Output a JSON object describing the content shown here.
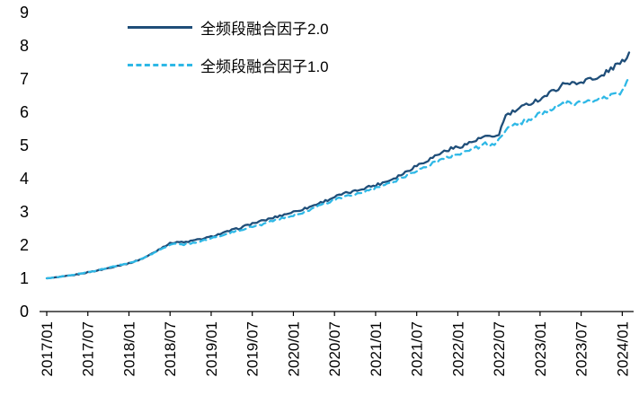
{
  "chart_data": {
    "type": "line",
    "title": "",
    "xlabel": "",
    "ylabel": "",
    "ylim": [
      0,
      9
    ],
    "y_ticks": [
      0,
      1,
      2,
      3,
      4,
      5,
      6,
      7,
      8,
      9
    ],
    "grid": false,
    "legend_position": "top-left-inside",
    "axis_color": "#000000",
    "x_tick_labels": [
      "2017/01",
      "2017/07",
      "2018/01",
      "2018/07",
      "2019/01",
      "2019/07",
      "2020/01",
      "2020/07",
      "2021/01",
      "2021/07",
      "2022/01",
      "2022/07",
      "2023/01",
      "2023/07",
      "2024/01"
    ],
    "x": [
      "2017/01",
      "2017/02",
      "2017/03",
      "2017/04",
      "2017/05",
      "2017/06",
      "2017/07",
      "2017/08",
      "2017/09",
      "2017/10",
      "2017/11",
      "2017/12",
      "2018/01",
      "2018/02",
      "2018/03",
      "2018/04",
      "2018/05",
      "2018/06",
      "2018/07",
      "2018/08",
      "2018/09",
      "2018/10",
      "2018/11",
      "2018/12",
      "2019/01",
      "2019/02",
      "2019/03",
      "2019/04",
      "2019/05",
      "2019/06",
      "2019/07",
      "2019/08",
      "2019/09",
      "2019/10",
      "2019/11",
      "2019/12",
      "2020/01",
      "2020/02",
      "2020/03",
      "2020/04",
      "2020/05",
      "2020/06",
      "2020/07",
      "2020/08",
      "2020/09",
      "2020/10",
      "2020/11",
      "2020/12",
      "2021/01",
      "2021/02",
      "2021/03",
      "2021/04",
      "2021/05",
      "2021/06",
      "2021/07",
      "2021/08",
      "2021/09",
      "2021/10",
      "2021/11",
      "2021/12",
      "2022/01",
      "2022/02",
      "2022/03",
      "2022/04",
      "2022/05",
      "2022/06",
      "2022/07",
      "2022/08",
      "2022/09",
      "2022/10",
      "2022/11",
      "2022/12",
      "2023/01",
      "2023/02",
      "2023/03",
      "2023/04",
      "2023/05",
      "2023/06",
      "2023/07",
      "2023/08",
      "2023/09",
      "2023/10",
      "2023/11",
      "2023/12",
      "2024/01",
      "2024/02"
    ],
    "series": [
      {
        "name": "全频段融合因子2.0",
        "color": "#1f4e79",
        "style": "solid",
        "values": [
          1.0,
          1.02,
          1.04,
          1.07,
          1.1,
          1.14,
          1.18,
          1.22,
          1.26,
          1.31,
          1.36,
          1.41,
          1.45,
          1.52,
          1.6,
          1.7,
          1.82,
          1.95,
          2.05,
          2.1,
          2.08,
          2.12,
          2.16,
          2.2,
          2.25,
          2.32,
          2.38,
          2.45,
          2.5,
          2.58,
          2.65,
          2.7,
          2.76,
          2.82,
          2.88,
          2.94,
          3.0,
          3.06,
          3.12,
          3.2,
          3.28,
          3.36,
          3.45,
          3.52,
          3.58,
          3.62,
          3.7,
          3.76,
          3.8,
          3.88,
          3.95,
          4.05,
          4.15,
          4.28,
          4.4,
          4.5,
          4.6,
          4.72,
          4.82,
          4.9,
          4.95,
          5.02,
          5.1,
          5.18,
          5.28,
          5.22,
          5.35,
          5.9,
          6.0,
          6.1,
          6.22,
          6.32,
          6.4,
          6.52,
          6.65,
          6.78,
          6.92,
          6.85,
          6.9,
          7.05,
          6.95,
          7.1,
          7.25,
          7.4,
          7.5,
          7.8
        ]
      },
      {
        "name": "全频段融合因子1.0",
        "color": "#2eb8e6",
        "style": "dashed",
        "values": [
          1.0,
          1.02,
          1.05,
          1.08,
          1.11,
          1.15,
          1.18,
          1.22,
          1.27,
          1.32,
          1.37,
          1.42,
          1.45,
          1.52,
          1.6,
          1.7,
          1.8,
          1.92,
          2.0,
          2.04,
          2.02,
          2.06,
          2.1,
          2.15,
          2.2,
          2.26,
          2.32,
          2.38,
          2.44,
          2.5,
          2.55,
          2.6,
          2.66,
          2.72,
          2.78,
          2.84,
          2.9,
          2.96,
          3.04,
          3.12,
          3.2,
          3.28,
          3.35,
          3.42,
          3.48,
          3.52,
          3.58,
          3.64,
          3.7,
          3.78,
          3.85,
          3.95,
          4.05,
          4.15,
          4.25,
          4.33,
          4.42,
          4.52,
          4.6,
          4.68,
          4.75,
          4.82,
          4.88,
          4.95,
          5.05,
          5.0,
          5.15,
          5.5,
          5.58,
          5.65,
          5.75,
          5.85,
          5.95,
          6.05,
          6.12,
          6.2,
          6.28,
          6.22,
          6.3,
          6.38,
          6.3,
          6.4,
          6.48,
          6.55,
          6.62,
          7.05
        ]
      }
    ]
  }
}
